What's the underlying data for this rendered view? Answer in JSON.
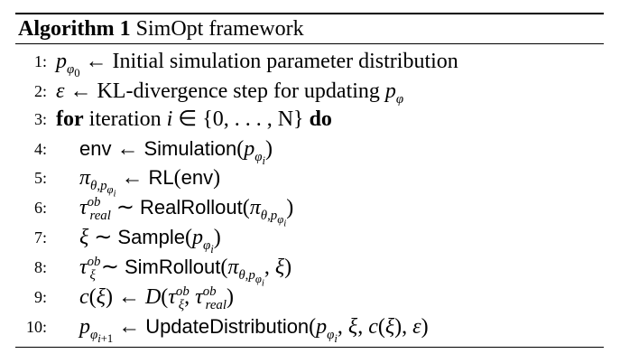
{
  "algorithm": {
    "label": "Algorithm 1",
    "title": "SimOpt framework"
  },
  "lines": [
    {
      "number": "1:",
      "text": "pφ0 ← Initial simulation parameter distribution"
    },
    {
      "number": "2:",
      "text": "ε ← KL-divergence step for updating pφ"
    },
    {
      "number": "3:",
      "text": "for iteration i ∈ {0, . . . , N} do"
    },
    {
      "number": "4:",
      "text": "env ← Simulation(pφi)"
    },
    {
      "number": "5:",
      "text": "πθ,pφi ← RL(env)"
    },
    {
      "number": "6:",
      "text": "τ^ob_real ∼ RealRollout(πθ,pφi)"
    },
    {
      "number": "7:",
      "text": "ξ ∼ Sample(pφi)"
    },
    {
      "number": "8:",
      "text": "τ^ob_ξ ∼ SimRollout(πθ,pφi, ξ)"
    },
    {
      "number": "9:",
      "text": "c(ξ) ← D(τ^ob_ξ, τ^ob_real)"
    },
    {
      "number": "10:",
      "text": "pφi+1 ← UpdateDistribution(pφi, ξ, c(ξ), ε)"
    }
  ],
  "tokens": {
    "arrow": "←",
    "sim": "∼",
    "l1_text": "Initial simulation parameter distribution",
    "l2_text": "KL-divergence step for updating",
    "l3_for": "for",
    "l3_text": "iteration",
    "l3_set": "∈ {0, . . . , N}",
    "l3_do": "do",
    "env": "env",
    "simulation": "Simulation",
    "rl": "RL",
    "real_rollout": "RealRollout",
    "sample": "Sample",
    "sim_rollout": "SimRollout",
    "update_dist": "UpdateDistribution"
  }
}
